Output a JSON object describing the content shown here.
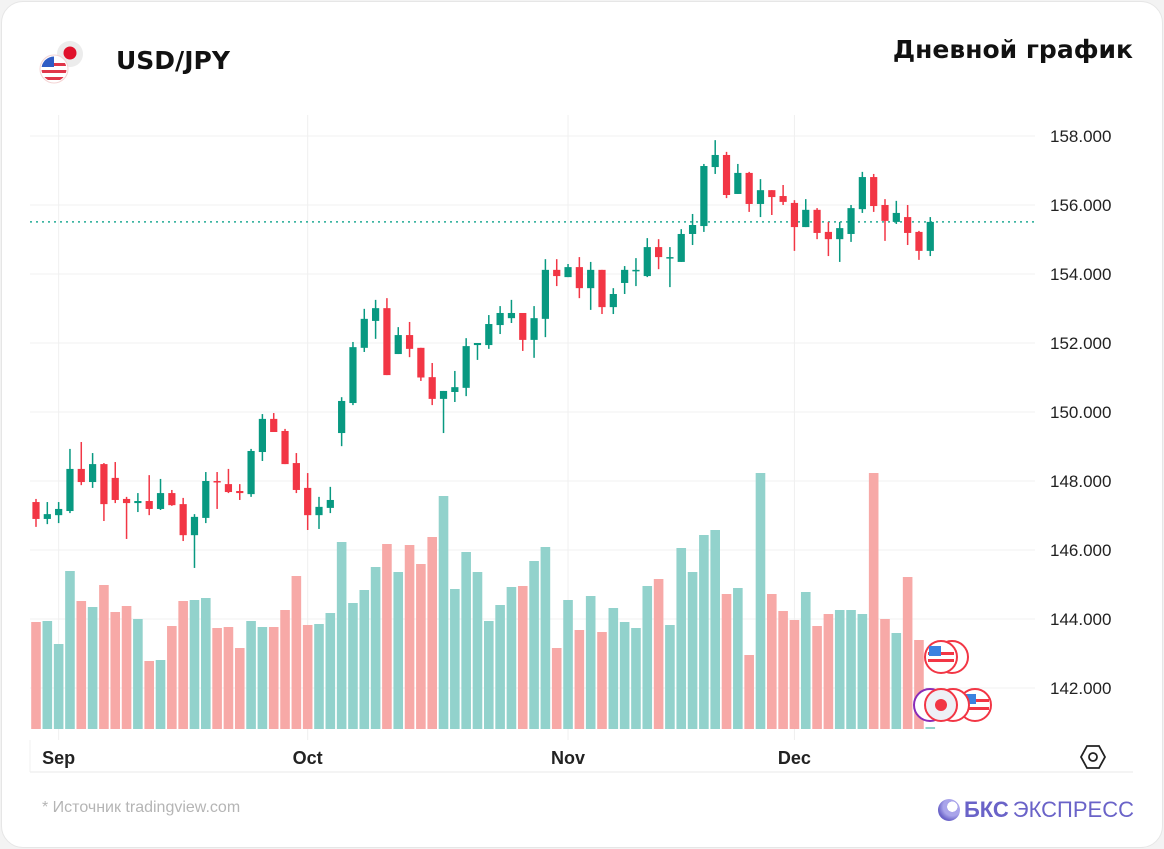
{
  "header": {
    "pair": "USD/JPY",
    "chart_type_label": "Дневной график"
  },
  "footer": {
    "source": "* Источник tradingview.com",
    "logo_bold": "БКС",
    "logo_rest": "ЭКСПРЕСС"
  },
  "colors": {
    "up": "#089981",
    "down": "#f23645",
    "up_volume": "#92d2cc",
    "down_volume": "#f7a9a7",
    "last_price_line": "#22ab94",
    "logo": "#6a63c8"
  },
  "chart_data": {
    "type": "candlestick",
    "title": "USD/JPY",
    "subtitle": "Дневной график",
    "ylim": [
      140.8,
      158.6
    ],
    "y_ticks": [
      "158.000",
      "156.000",
      "154.000",
      "152.000",
      "150.000",
      "148.000",
      "146.000",
      "144.000",
      "142.000"
    ],
    "y_tick_values": [
      158,
      156,
      154,
      152,
      150,
      148,
      146,
      144,
      142
    ],
    "x_ticks": [
      {
        "label": "Sep",
        "index": 2
      },
      {
        "label": "Oct",
        "index": 24
      },
      {
        "label": "Nov",
        "index": 47
      },
      {
        "label": "Dec",
        "index": 67
      }
    ],
    "last_price": 155.51,
    "grid": true,
    "ohlc": [
      [
        147.39,
        147.48,
        146.67,
        146.9
      ],
      [
        146.9,
        147.39,
        146.75,
        147.04
      ],
      [
        147.01,
        147.39,
        146.78,
        147.19
      ],
      [
        147.13,
        148.93,
        147.07,
        148.35
      ],
      [
        148.35,
        149.13,
        147.88,
        147.97
      ],
      [
        147.97,
        148.81,
        147.8,
        148.49
      ],
      [
        148.49,
        148.52,
        146.84,
        147.33
      ],
      [
        148.09,
        148.55,
        147.36,
        147.45
      ],
      [
        147.48,
        147.54,
        146.32,
        147.36
      ],
      [
        147.36,
        147.65,
        147.1,
        147.42
      ],
      [
        147.42,
        148.17,
        147.01,
        147.19
      ],
      [
        147.19,
        148.06,
        147.16,
        147.65
      ],
      [
        147.65,
        147.74,
        147.28,
        147.3
      ],
      [
        147.33,
        147.51,
        146.26,
        146.43
      ],
      [
        146.43,
        147.04,
        145.48,
        146.96
      ],
      [
        146.93,
        148.26,
        146.78,
        148.0
      ],
      [
        148.0,
        148.26,
        147.19,
        147.97
      ],
      [
        147.91,
        148.35,
        147.65,
        147.68
      ],
      [
        147.71,
        147.91,
        147.45,
        147.65
      ],
      [
        147.62,
        148.93,
        147.54,
        148.87
      ],
      [
        148.84,
        149.94,
        148.58,
        149.8
      ],
      [
        149.8,
        149.97,
        149.42,
        149.42
      ],
      [
        149.45,
        149.51,
        148.49,
        148.49
      ],
      [
        148.52,
        148.81,
        147.65,
        147.74
      ],
      [
        147.8,
        148.23,
        146.58,
        147.01
      ],
      [
        147.01,
        147.54,
        146.61,
        147.25
      ],
      [
        147.22,
        147.83,
        147.07,
        147.45
      ],
      [
        149.39,
        150.43,
        149.01,
        150.32
      ],
      [
        150.26,
        152.03,
        150.2,
        151.88
      ],
      [
        151.86,
        152.99,
        151.74,
        152.7
      ],
      [
        152.64,
        153.25,
        152.12,
        153.01
      ],
      [
        153.01,
        153.3,
        151.07,
        151.07
      ],
      [
        151.68,
        152.46,
        151.68,
        152.23
      ],
      [
        152.23,
        152.61,
        151.59,
        151.83
      ],
      [
        151.86,
        151.86,
        150.9,
        151.0
      ],
      [
        151.01,
        151.42,
        150.2,
        150.38
      ],
      [
        150.38,
        150.61,
        149.39,
        150.61
      ],
      [
        150.58,
        151.19,
        150.29,
        150.72
      ],
      [
        150.7,
        152.14,
        150.46,
        151.91
      ],
      [
        151.94,
        152.0,
        151.51,
        152.0
      ],
      [
        151.94,
        152.81,
        151.83,
        152.55
      ],
      [
        152.52,
        153.07,
        152.26,
        152.87
      ],
      [
        152.72,
        153.25,
        152.58,
        152.87
      ],
      [
        152.87,
        152.87,
        151.77,
        152.09
      ],
      [
        152.09,
        153.07,
        151.57,
        152.72
      ],
      [
        152.7,
        154.43,
        152.17,
        154.12
      ],
      [
        154.12,
        154.43,
        153.65,
        153.94
      ],
      [
        153.91,
        154.29,
        153.91,
        154.2
      ],
      [
        154.2,
        154.49,
        153.3,
        153.59
      ],
      [
        153.59,
        154.35,
        152.96,
        154.12
      ],
      [
        154.12,
        154.12,
        152.84,
        153.04
      ],
      [
        153.04,
        153.59,
        152.84,
        153.42
      ],
      [
        153.74,
        154.23,
        153.42,
        154.12
      ],
      [
        154.09,
        154.46,
        153.65,
        154.12
      ],
      [
        153.94,
        155.04,
        153.91,
        154.78
      ],
      [
        154.78,
        155.01,
        154.14,
        154.49
      ],
      [
        154.46,
        154.78,
        153.62,
        154.49
      ],
      [
        154.35,
        155.3,
        154.35,
        155.16
      ],
      [
        155.16,
        155.74,
        154.84,
        155.42
      ],
      [
        155.39,
        157.19,
        155.22,
        157.13
      ],
      [
        157.1,
        157.88,
        156.9,
        157.45
      ],
      [
        157.45,
        157.54,
        156.2,
        156.29
      ],
      [
        156.32,
        157.19,
        156.32,
        156.93
      ],
      [
        156.93,
        156.96,
        155.8,
        156.03
      ],
      [
        156.03,
        156.75,
        155.65,
        156.43
      ],
      [
        156.43,
        156.43,
        155.71,
        156.23
      ],
      [
        156.26,
        156.58,
        156.0,
        156.09
      ],
      [
        156.06,
        156.14,
        154.67,
        155.36
      ],
      [
        155.36,
        156.17,
        155.36,
        155.86
      ],
      [
        155.86,
        155.91,
        155.01,
        155.19
      ],
      [
        155.22,
        155.51,
        154.52,
        155.01
      ],
      [
        155.01,
        155.51,
        154.35,
        155.33
      ],
      [
        155.16,
        156.0,
        154.93,
        155.91
      ],
      [
        155.88,
        156.96,
        155.77,
        156.81
      ],
      [
        156.81,
        156.9,
        155.8,
        155.97
      ],
      [
        156.0,
        156.17,
        154.96,
        155.54
      ],
      [
        155.51,
        156.12,
        155.45,
        155.77
      ],
      [
        155.65,
        156.0,
        154.84,
        155.19
      ],
      [
        155.22,
        155.25,
        154.41,
        154.67
      ],
      [
        154.67,
        155.65,
        154.52,
        155.51
      ]
    ],
    "volume_relative": [
      107,
      108,
      85,
      158,
      128,
      122,
      144,
      117,
      123,
      110,
      68,
      69,
      103,
      128,
      129,
      131,
      101,
      102,
      81,
      108,
      102,
      102,
      119,
      153,
      104,
      105,
      116,
      187,
      126,
      139,
      162,
      185,
      157,
      184,
      165,
      192,
      233,
      140,
      177,
      157,
      108,
      124,
      142,
      143,
      168,
      182,
      81,
      129,
      99,
      133,
      97,
      121,
      107,
      101,
      143,
      150,
      104,
      181,
      157,
      194,
      199,
      135,
      141,
      74,
      256,
      135,
      118,
      109,
      137,
      103,
      115,
      119,
      119,
      115,
      256,
      110,
      96,
      152,
      89,
      2
    ]
  }
}
